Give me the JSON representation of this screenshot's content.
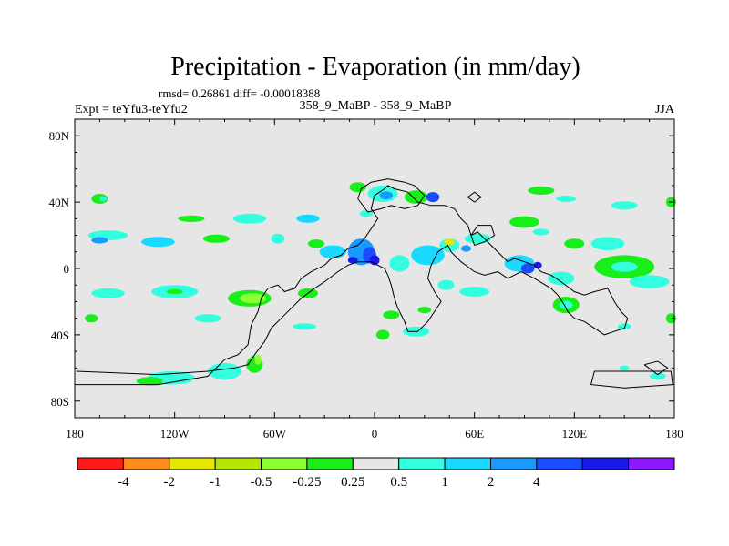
{
  "chart_data": {
    "type": "heatmap",
    "title": "Precipitation - Evaporation (in mm/day)",
    "stats": "rmsd= 0.26861 diff= -0.00018388",
    "left_label": "Expt = teYfu3-teYfu2",
    "center_label": "358_9_MaBP - 358_9_MaBP",
    "right_label": "JJA",
    "xlim": [
      -180,
      180
    ],
    "ylim": [
      -90,
      90
    ],
    "x_ticks": [
      {
        "value": -180,
        "label": "180"
      },
      {
        "value": -120,
        "label": "120W"
      },
      {
        "value": -60,
        "label": "60W"
      },
      {
        "value": 0,
        "label": "0"
      },
      {
        "value": 60,
        "label": "60E"
      },
      {
        "value": 120,
        "label": "120E"
      },
      {
        "value": 180,
        "label": "180"
      }
    ],
    "y_ticks": [
      {
        "value": 80,
        "label": "80N"
      },
      {
        "value": 40,
        "label": "40N"
      },
      {
        "value": 0,
        "label": "0"
      },
      {
        "value": -40,
        "label": "40S"
      },
      {
        "value": -80,
        "label": "80S"
      }
    ],
    "colorbar": {
      "colors": [
        "#ff1a1a",
        "#ff8c1a",
        "#e6e600",
        "#b3e600",
        "#8cff33",
        "#1aee1a",
        "#e6e6e6",
        "#33ffe0",
        "#1ad9ff",
        "#1a99ff",
        "#1a4dff",
        "#1a1ae6",
        "#8c1aff"
      ],
      "labels": [
        "-4",
        "-2",
        "-1",
        "-0.5",
        "-0.25",
        "0.25",
        "0.5",
        "1",
        "2",
        "4"
      ],
      "label_after_box": [
        1,
        2,
        3,
        4,
        5,
        6,
        7,
        8,
        9,
        10
      ]
    },
    "patches": [
      {
        "lon": -165,
        "lat": 42,
        "rx": 5,
        "ry": 3,
        "color": "#1aee1a"
      },
      {
        "lon": -163,
        "lat": 42,
        "rx": 2,
        "ry": 1.5,
        "color": "#33ffe0"
      },
      {
        "lon": -160,
        "lat": 20,
        "rx": 12,
        "ry": 3,
        "color": "#33ffe0"
      },
      {
        "lon": -165,
        "lat": 17,
        "rx": 5,
        "ry": 2,
        "color": "#1a99ff"
      },
      {
        "lon": -130,
        "lat": 16,
        "rx": 10,
        "ry": 3,
        "color": "#1ad9ff"
      },
      {
        "lon": -110,
        "lat": 30,
        "rx": 8,
        "ry": 2,
        "color": "#1aee1a"
      },
      {
        "lon": -75,
        "lat": 30,
        "rx": 10,
        "ry": 3,
        "color": "#33ffe0"
      },
      {
        "lon": -40,
        "lat": 30,
        "rx": 7,
        "ry": 2.5,
        "color": "#1ad9ff"
      },
      {
        "lon": -95,
        "lat": 18,
        "rx": 8,
        "ry": 2.5,
        "color": "#1aee1a"
      },
      {
        "lon": -58,
        "lat": 18,
        "rx": 4,
        "ry": 3,
        "color": "#33ffe0"
      },
      {
        "lon": -35,
        "lat": 15,
        "rx": 5,
        "ry": 2.5,
        "color": "#1aee1a"
      },
      {
        "lon": -160,
        "lat": -15,
        "rx": 10,
        "ry": 3,
        "color": "#33ffe0"
      },
      {
        "lon": -120,
        "lat": -14,
        "rx": 14,
        "ry": 4,
        "color": "#33ffe0"
      },
      {
        "lon": -120,
        "lat": -14,
        "rx": 5,
        "ry": 1.5,
        "color": "#1aee1a"
      },
      {
        "lon": -75,
        "lat": -18,
        "rx": 13,
        "ry": 5,
        "color": "#1aee1a"
      },
      {
        "lon": -73,
        "lat": -18,
        "rx": 8,
        "ry": 3,
        "color": "#8cff33"
      },
      {
        "lon": -40,
        "lat": -15,
        "rx": 6,
        "ry": 3,
        "color": "#1aee1a"
      },
      {
        "lon": -170,
        "lat": -30,
        "rx": 4,
        "ry": 2.5,
        "color": "#1aee1a"
      },
      {
        "lon": -100,
        "lat": -30,
        "rx": 8,
        "ry": 2.5,
        "color": "#33ffe0"
      },
      {
        "lon": -42,
        "lat": -35,
        "rx": 7,
        "ry": 2,
        "color": "#33ffe0"
      },
      {
        "lon": -122,
        "lat": -66,
        "rx": 14,
        "ry": 4,
        "color": "#33ffe0"
      },
      {
        "lon": -135,
        "lat": -68,
        "rx": 8,
        "ry": 2.5,
        "color": "#1aee1a"
      },
      {
        "lon": -90,
        "lat": -62,
        "rx": 10,
        "ry": 5,
        "color": "#33ffe0"
      },
      {
        "lon": -72,
        "lat": -58,
        "rx": 5,
        "ry": 5,
        "color": "#1aee1a"
      },
      {
        "lon": -70,
        "lat": -55,
        "rx": 2,
        "ry": 3,
        "color": "#8cff33"
      },
      {
        "lon": -10,
        "lat": 49,
        "rx": 5,
        "ry": 3,
        "color": "#1aee1a"
      },
      {
        "lon": 5,
        "lat": 45,
        "rx": 9,
        "ry": 5,
        "color": "#33ffe0"
      },
      {
        "lon": 7,
        "lat": 44,
        "rx": 4,
        "ry": 2.5,
        "color": "#1a99ff"
      },
      {
        "lon": 25,
        "lat": 43,
        "rx": 7,
        "ry": 4,
        "color": "#1aee1a"
      },
      {
        "lon": 35,
        "lat": 43,
        "rx": 4,
        "ry": 3,
        "color": "#1a4dff"
      },
      {
        "lon": -5,
        "lat": 33,
        "rx": 4,
        "ry": 2,
        "color": "#33ffe0"
      },
      {
        "lon": -8,
        "lat": 10,
        "rx": 8,
        "ry": 8,
        "color": "#1a99ff"
      },
      {
        "lon": -3,
        "lat": 8,
        "rx": 4,
        "ry": 5,
        "color": "#1a4dff"
      },
      {
        "lon": 0,
        "lat": 5,
        "rx": 3,
        "ry": 3,
        "color": "#1a1ae6"
      },
      {
        "lon": -25,
        "lat": 10,
        "rx": 8,
        "ry": 4,
        "color": "#1ad9ff"
      },
      {
        "lon": -13,
        "lat": 5,
        "rx": 3,
        "ry": 2,
        "color": "#1a1ae6"
      },
      {
        "lon": 15,
        "lat": 3,
        "rx": 6,
        "ry": 5,
        "color": "#33ffe0"
      },
      {
        "lon": 32,
        "lat": 8,
        "rx": 10,
        "ry": 6,
        "color": "#1ad9ff"
      },
      {
        "lon": 45,
        "lat": 14,
        "rx": 6,
        "ry": 4,
        "color": "#33ffe0"
      },
      {
        "lon": 45,
        "lat": 16,
        "rx": 3,
        "ry": 2,
        "color": "#e6e600"
      },
      {
        "lon": 55,
        "lat": 12,
        "rx": 3,
        "ry": 2,
        "color": "#1a99ff"
      },
      {
        "lon": 62,
        "lat": 18,
        "rx": 8,
        "ry": 3,
        "color": "#33ffe0"
      },
      {
        "lon": 87,
        "lat": 3,
        "rx": 9,
        "ry": 5,
        "color": "#1ad9ff"
      },
      {
        "lon": 92,
        "lat": 0,
        "rx": 4,
        "ry": 3,
        "color": "#1a4dff"
      },
      {
        "lon": 98,
        "lat": 2,
        "rx": 2.5,
        "ry": 2,
        "color": "#1a1ae6"
      },
      {
        "lon": 112,
        "lat": -6,
        "rx": 8,
        "ry": 4,
        "color": "#33ffe0"
      },
      {
        "lon": 150,
        "lat": 1,
        "rx": 18,
        "ry": 7,
        "color": "#1aee1a"
      },
      {
        "lon": 150,
        "lat": 1,
        "rx": 8,
        "ry": 3,
        "color": "#33ffe0"
      },
      {
        "lon": 165,
        "lat": -8,
        "rx": 12,
        "ry": 4,
        "color": "#33ffe0"
      },
      {
        "lon": 140,
        "lat": 15,
        "rx": 10,
        "ry": 4,
        "color": "#33ffe0"
      },
      {
        "lon": 120,
        "lat": 15,
        "rx": 6,
        "ry": 3,
        "color": "#1aee1a"
      },
      {
        "lon": 90,
        "lat": 28,
        "rx": 9,
        "ry": 3.5,
        "color": "#1aee1a"
      },
      {
        "lon": 100,
        "lat": 22,
        "rx": 5,
        "ry": 2,
        "color": "#33ffe0"
      },
      {
        "lon": 100,
        "lat": 47,
        "rx": 8,
        "ry": 2.5,
        "color": "#1aee1a"
      },
      {
        "lon": 115,
        "lat": 42,
        "rx": 6,
        "ry": 2,
        "color": "#33ffe0"
      },
      {
        "lon": 150,
        "lat": 38,
        "rx": 8,
        "ry": 2.5,
        "color": "#33ffe0"
      },
      {
        "lon": 178,
        "lat": 40,
        "rx": 3,
        "ry": 3,
        "color": "#1aee1a"
      },
      {
        "lon": 43,
        "lat": -10,
        "rx": 5,
        "ry": 3,
        "color": "#33ffe0"
      },
      {
        "lon": 60,
        "lat": -14,
        "rx": 9,
        "ry": 3,
        "color": "#33ffe0"
      },
      {
        "lon": 115,
        "lat": -22,
        "rx": 8,
        "ry": 5,
        "color": "#1aee1a"
      },
      {
        "lon": 115,
        "lat": -22,
        "rx": 4,
        "ry": 2.5,
        "color": "#33ffe0"
      },
      {
        "lon": 10,
        "lat": -28,
        "rx": 5,
        "ry": 2.5,
        "color": "#1aee1a"
      },
      {
        "lon": 25,
        "lat": -38,
        "rx": 8,
        "ry": 3,
        "color": "#33ffe0"
      },
      {
        "lon": 5,
        "lat": -40,
        "rx": 4,
        "ry": 3,
        "color": "#1aee1a"
      },
      {
        "lon": 30,
        "lat": -25,
        "rx": 4,
        "ry": 2,
        "color": "#1aee1a"
      },
      {
        "lon": 178,
        "lat": -30,
        "rx": 3,
        "ry": 3,
        "color": "#1aee1a"
      },
      {
        "lon": 150,
        "lat": -35,
        "rx": 4,
        "ry": 2,
        "color": "#33ffe0"
      },
      {
        "lon": 150,
        "lat": -60,
        "rx": 3,
        "ry": 1.5,
        "color": "#33ffe0"
      },
      {
        "lon": 170,
        "lat": -65,
        "rx": 5,
        "ry": 2,
        "color": "#33ffe0"
      }
    ],
    "coast_lines": [
      [
        [
          -179,
          -70
        ],
        [
          -130,
          -70
        ],
        [
          -100,
          -65
        ],
        [
          -90,
          -55
        ],
        [
          -82,
          -52
        ],
        [
          -76,
          -46
        ],
        [
          -74,
          -34
        ],
        [
          -70,
          -26
        ],
        [
          -68,
          -18
        ],
        [
          -64,
          -12
        ],
        [
          -58,
          -10
        ],
        [
          -54,
          -14
        ],
        [
          -48,
          -12
        ],
        [
          -44,
          -6
        ],
        [
          -38,
          -2
        ],
        [
          -30,
          2
        ],
        [
          -26,
          6
        ],
        [
          -20,
          8
        ],
        [
          -16,
          12
        ],
        [
          -10,
          14
        ],
        [
          -6,
          18
        ],
        [
          -2,
          24
        ],
        [
          2,
          30
        ],
        [
          -2,
          36
        ],
        [
          0,
          44
        ],
        [
          6,
          48
        ],
        [
          8,
          50
        ],
        [
          12,
          48
        ],
        [
          20,
          46
        ],
        [
          26,
          40
        ],
        [
          34,
          38
        ],
        [
          42,
          38
        ],
        [
          48,
          36
        ],
        [
          52,
          30
        ],
        [
          56,
          26
        ],
        [
          58,
          20
        ],
        [
          62,
          22
        ],
        [
          66,
          18
        ],
        [
          70,
          14
        ],
        [
          76,
          8
        ],
        [
          80,
          4
        ],
        [
          84,
          6
        ],
        [
          90,
          4
        ],
        [
          96,
          2
        ],
        [
          100,
          -2
        ],
        [
          106,
          -4
        ],
        [
          112,
          -8
        ],
        [
          120,
          -14
        ],
        [
          126,
          -16
        ],
        [
          132,
          -14
        ],
        [
          140,
          -12
        ],
        [
          144,
          -20
        ],
        [
          148,
          -26
        ],
        [
          152,
          -30
        ],
        [
          150,
          -36
        ],
        [
          144,
          -38
        ],
        [
          138,
          -40
        ],
        [
          132,
          -36
        ],
        [
          126,
          -32
        ],
        [
          120,
          -30
        ],
        [
          116,
          -26
        ],
        [
          114,
          -22
        ],
        [
          110,
          -16
        ],
        [
          106,
          -12
        ],
        [
          96,
          -6
        ],
        [
          88,
          -2
        ],
        [
          80,
          -6
        ],
        [
          74,
          -2
        ],
        [
          66,
          -4
        ],
        [
          60,
          -2
        ],
        [
          52,
          4
        ],
        [
          46,
          10
        ],
        [
          44,
          14
        ],
        [
          38,
          10
        ],
        [
          34,
          2
        ],
        [
          32,
          -6
        ],
        [
          36,
          -14
        ],
        [
          40,
          -20
        ],
        [
          36,
          -26
        ],
        [
          32,
          -32
        ],
        [
          26,
          -38
        ],
        [
          20,
          -38
        ],
        [
          18,
          -32
        ],
        [
          14,
          -24
        ],
        [
          12,
          -18
        ],
        [
          10,
          -10
        ],
        [
          8,
          -4
        ],
        [
          6,
          0
        ],
        [
          2,
          2
        ],
        [
          -2,
          4
        ],
        [
          -10,
          4
        ],
        [
          -16,
          2
        ],
        [
          -22,
          -2
        ],
        [
          -30,
          -8
        ],
        [
          -36,
          -12
        ],
        [
          -44,
          -18
        ],
        [
          -50,
          -24
        ],
        [
          -56,
          -30
        ],
        [
          -62,
          -36
        ],
        [
          -66,
          -44
        ],
        [
          -72,
          -52
        ],
        [
          -76,
          -58
        ],
        [
          -84,
          -60
        ],
        [
          -100,
          -62
        ],
        [
          -130,
          -64
        ],
        [
          -179,
          -62
        ]
      ],
      [
        [
          -10,
          42
        ],
        [
          -8,
          48
        ],
        [
          -2,
          52
        ],
        [
          8,
          54
        ],
        [
          18,
          52
        ],
        [
          24,
          50
        ],
        [
          30,
          44
        ],
        [
          26,
          38
        ],
        [
          18,
          36
        ],
        [
          10,
          38
        ],
        [
          4,
          36
        ],
        [
          -4,
          34
        ],
        [
          -10,
          42
        ]
      ],
      [
        [
          60,
          14
        ],
        [
          66,
          16
        ],
        [
          72,
          20
        ],
        [
          70,
          26
        ],
        [
          62,
          26
        ],
        [
          58,
          20
        ],
        [
          60,
          14
        ]
      ],
      [
        [
          132,
          -62
        ],
        [
          150,
          -62
        ],
        [
          178,
          -62
        ],
        [
          179,
          -70
        ],
        [
          150,
          -72
        ],
        [
          130,
          -70
        ],
        [
          132,
          -62
        ]
      ],
      [
        [
          162,
          -58
        ],
        [
          170,
          -56
        ],
        [
          176,
          -60
        ],
        [
          170,
          -64
        ],
        [
          162,
          -58
        ]
      ],
      [
        [
          60,
          40
        ],
        [
          64,
          43
        ],
        [
          60,
          46
        ],
        [
          56,
          43
        ],
        [
          60,
          40
        ]
      ]
    ]
  }
}
